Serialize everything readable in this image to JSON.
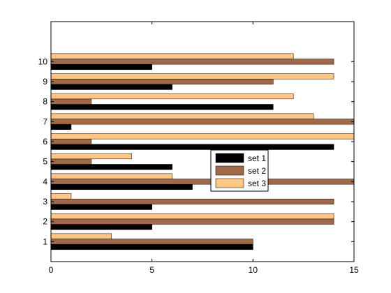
{
  "chart_data": {
    "type": "bar",
    "orientation": "horizontal",
    "categories": [
      "1",
      "2",
      "3",
      "4",
      "5",
      "6",
      "7",
      "8",
      "9",
      "10"
    ],
    "series": [
      {
        "name": "set 1",
        "color": "#000000",
        "values": [
          10,
          5,
          5,
          7,
          6,
          14,
          1,
          11,
          6,
          5
        ]
      },
      {
        "name": "set 2",
        "color": "#a0694a",
        "values": [
          10,
          14,
          14,
          15,
          2,
          2,
          15,
          2,
          11,
          14
        ]
      },
      {
        "name": "set 3",
        "color": "#ffc685",
        "values": [
          3,
          14,
          1,
          6,
          4,
          15,
          13,
          12,
          14,
          12
        ]
      }
    ],
    "xlim": [
      0,
      15
    ],
    "x_ticks": [
      "0",
      "5",
      "10",
      "15"
    ],
    "ylim": [
      0,
      12
    ],
    "grid": false,
    "legend_position": "center"
  }
}
